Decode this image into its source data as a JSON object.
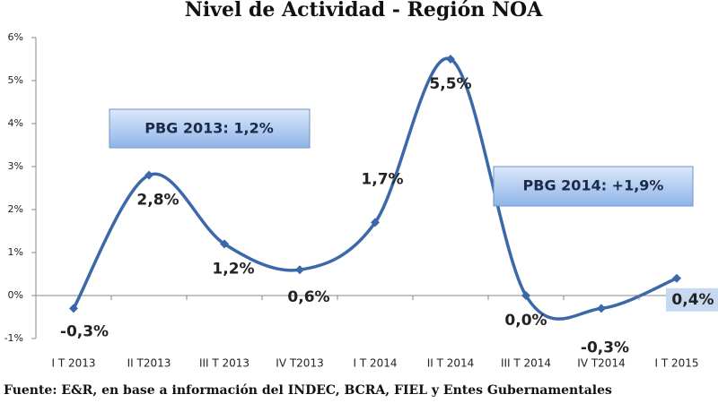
{
  "chart_data": {
    "type": "line",
    "title": "Nivel de Actividad - Región NOA",
    "categories": [
      "I T 2013",
      "II T2013",
      "III T 2013",
      "IV T2013",
      "I T 2014",
      "II T 2014",
      "III T 2014",
      "IV T2014",
      "I T 2015"
    ],
    "values": [
      -0.3,
      2.8,
      1.2,
      0.6,
      1.7,
      5.5,
      0.0,
      -0.3,
      0.4
    ],
    "value_labels": [
      "-0,3%",
      "2,8%",
      "1,2%",
      "0,6%",
      "1,7%",
      "5,5%",
      "0,0%",
      "-0,3%",
      "0,4%"
    ],
    "color": "#3a68a8",
    "ylim": [
      -1,
      6
    ],
    "yticks": [
      {
        "value": -1,
        "label": "-1%"
      },
      {
        "value": 0,
        "label": "0%"
      },
      {
        "value": 1,
        "label": "1%"
      },
      {
        "value": 2,
        "label": "2%"
      },
      {
        "value": 3,
        "label": "3%"
      },
      {
        "value": 4,
        "label": "4%"
      },
      {
        "value": 5,
        "label": "5%"
      },
      {
        "value": 6,
        "label": "6%"
      }
    ],
    "annotations": [
      "PBG 2013: 1,2%",
      "PBG 2014: +1,9%"
    ],
    "source": "Fuente: E&R, en base a información del INDEC, BCRA, FIEL y Entes Gubernamentales"
  }
}
